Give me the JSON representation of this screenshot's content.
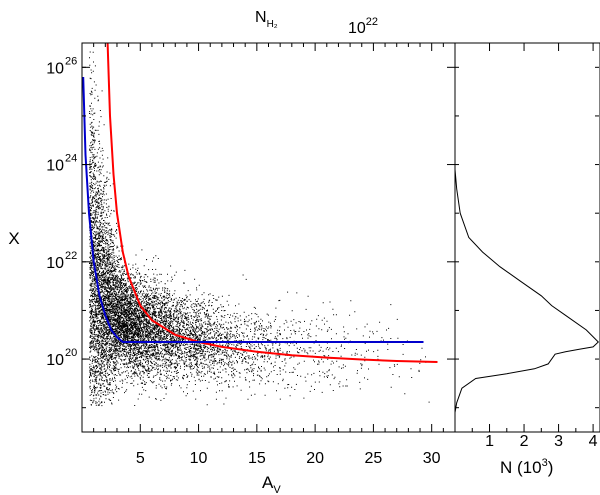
{
  "chart_data": [
    {
      "type": "scatter",
      "xlabel_main": "A",
      "xlabel_sub": "V",
      "ylabel": "X",
      "top_axis_label_main": "N",
      "top_axis_label_sub": "H₂",
      "top_axis_tick_label": "10^22",
      "xlim": [
        0,
        32
      ],
      "ylim_log10": [
        18.5,
        26.5
      ],
      "y_scale": "log",
      "x_ticks": [
        5,
        10,
        15,
        20,
        25,
        30
      ],
      "x_tick_labels": [
        "5",
        "10",
        "15",
        "20",
        "25",
        "30"
      ],
      "y_ticks_log10": [
        20,
        22,
        24,
        26
      ],
      "y_tick_labels": [
        {
          "base": "10",
          "exp": "20"
        },
        {
          "base": "10",
          "exp": "22"
        },
        {
          "base": "10",
          "exp": "24"
        },
        {
          "base": "10",
          "exp": "26"
        }
      ],
      "point_color": "#000000",
      "scatter_description_density_ridge": {
        "x": [
          0.8,
          1.2,
          1.7,
          2.2,
          3,
          4,
          6,
          8,
          10,
          13,
          16,
          19,
          22,
          25,
          28
        ],
        "y_log10": [
          21.5,
          21.2,
          21.0,
          20.9,
          20.8,
          20.75,
          20.6,
          20.5,
          20.4,
          20.3,
          20.25,
          20.2,
          20.15,
          20.1,
          20.05
        ]
      },
      "series": [
        {
          "name": "",
          "color": "#ff0000",
          "x": [
            2.2,
            2.4,
            2.7,
            3,
            3.5,
            4,
            5,
            6,
            8,
            10,
            12,
            15,
            18,
            21,
            24,
            27,
            30.5
          ],
          "y_log10": [
            26.5,
            25.0,
            23.8,
            23.0,
            22.2,
            21.7,
            21.1,
            20.8,
            20.5,
            20.35,
            20.25,
            20.15,
            20.08,
            20.03,
            19.99,
            19.96,
            19.94
          ]
        },
        {
          "name": "",
          "color": "#0000cc",
          "x": [
            0.1,
            0.3,
            0.6,
            1.0,
            1.5,
            2.0,
            2.5,
            3.0,
            3.5,
            29.3
          ],
          "y_log10": [
            25.8,
            24.2,
            23.0,
            22.0,
            21.3,
            20.9,
            20.6,
            20.45,
            20.35,
            20.35
          ]
        }
      ]
    },
    {
      "type": "line",
      "xlabel": "N (10",
      "xlabel_exp": "3",
      "xlabel_close": ")",
      "xlim": [
        0,
        4.2
      ],
      "x_ticks": [
        1,
        2,
        3,
        4
      ],
      "x_tick_labels": [
        "1",
        "2",
        "3",
        "4"
      ],
      "shared_y_log10": [
        18.5,
        26.5
      ],
      "series": [
        {
          "name": "",
          "color": "#000000",
          "n": [
            0.0,
            0.05,
            0.15,
            0.4,
            0.8,
            1.3,
            1.9,
            2.5,
            2.8,
            3.2,
            3.8,
            4.15,
            4.0,
            3.6,
            3.2,
            2.9,
            2.7,
            2.3,
            1.5,
            0.6,
            0.2,
            0.05,
            0.0
          ],
          "y_log10": [
            23.9,
            23.5,
            23.0,
            22.5,
            22.2,
            21.9,
            21.6,
            21.3,
            21.1,
            20.9,
            20.6,
            20.35,
            20.25,
            20.2,
            20.15,
            20.1,
            19.9,
            19.8,
            19.7,
            19.6,
            19.4,
            19.1,
            18.9
          ]
        }
      ]
    }
  ]
}
